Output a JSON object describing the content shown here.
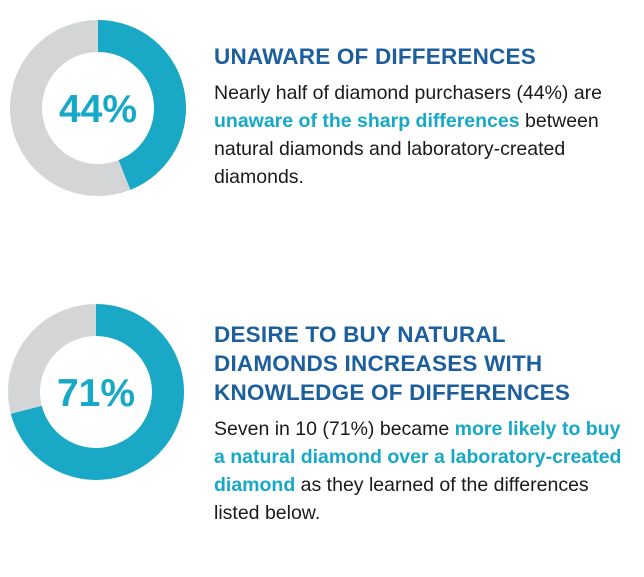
{
  "colors": {
    "ring_fill": "#19a9c6",
    "ring_track": "#d4d5d6",
    "percent_text": "#16a9c7",
    "heading_text": "#1c5f9c",
    "highlight_text": "#16a9c7",
    "body_text": "#1a1a1a"
  },
  "chart_data": [
    {
      "type": "pie",
      "style": "donut",
      "value": 44,
      "label": "44%"
    },
    {
      "type": "pie",
      "style": "donut",
      "value": 71,
      "label": "71%"
    }
  ],
  "stats": [
    {
      "heading": "UNAWARE OF DIFFERENCES",
      "body_before": "Nearly half of diamond purchasers (44%) are ",
      "body_highlight": "unaware of the sharp differences",
      "body_after": " between natural diamonds and laboratory-created diamonds."
    },
    {
      "heading": "DESIRE TO BUY NATURAL DIAMONDS INCREASES WITH KNOWLEDGE OF DIFFERENCES",
      "body_before": "Seven in 10 (71%) became ",
      "body_highlight": "more likely to buy a natural diamond over a laboratory-created diamond",
      "body_after": " as they learned of the differences listed below."
    }
  ]
}
